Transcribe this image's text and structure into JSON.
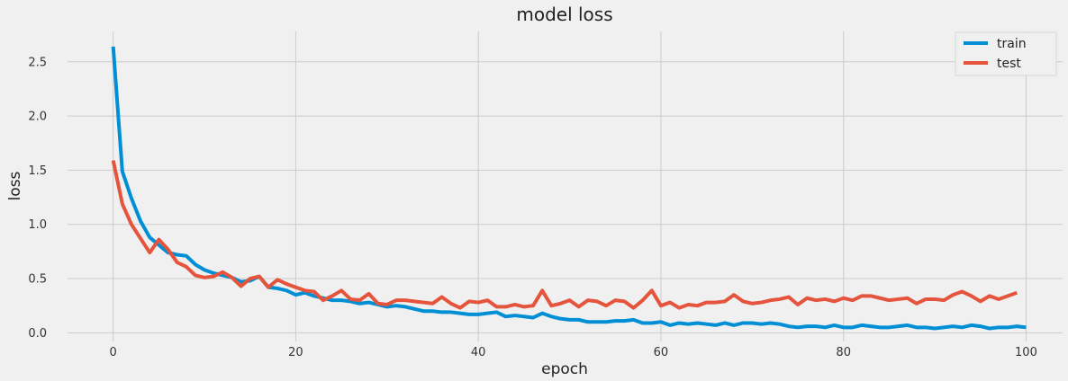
{
  "chart_data": {
    "type": "line",
    "title": "model loss",
    "xlabel": "epoch",
    "ylabel": "loss",
    "xlim": [
      -5,
      104
    ],
    "ylim": [
      -0.08,
      2.78
    ],
    "xticks": [
      0,
      20,
      40,
      60,
      80,
      100
    ],
    "xtick_labels": [
      "0",
      "20",
      "40",
      "60",
      "80",
      "100"
    ],
    "yticks": [
      0.0,
      0.5,
      1.0,
      1.5,
      2.0,
      2.5
    ],
    "ytick_labels": [
      "0.0",
      "0.5",
      "1.0",
      "1.5",
      "2.0",
      "2.5"
    ],
    "grid": true,
    "legend_position": "top-right",
    "series": [
      {
        "name": "train",
        "color": "#008fd5",
        "values": [
          2.64,
          1.49,
          1.24,
          1.03,
          0.88,
          0.81,
          0.74,
          0.72,
          0.71,
          0.63,
          0.58,
          0.55,
          0.53,
          0.51,
          0.47,
          0.48,
          0.52,
          0.42,
          0.41,
          0.39,
          0.35,
          0.37,
          0.34,
          0.32,
          0.3,
          0.3,
          0.29,
          0.27,
          0.28,
          0.26,
          0.24,
          0.25,
          0.24,
          0.22,
          0.2,
          0.2,
          0.19,
          0.19,
          0.18,
          0.17,
          0.17,
          0.18,
          0.19,
          0.15,
          0.16,
          0.15,
          0.14,
          0.18,
          0.15,
          0.13,
          0.12,
          0.12,
          0.1,
          0.1,
          0.1,
          0.11,
          0.11,
          0.12,
          0.09,
          0.09,
          0.1,
          0.07,
          0.09,
          0.08,
          0.09,
          0.08,
          0.07,
          0.09,
          0.07,
          0.09,
          0.09,
          0.08,
          0.09,
          0.08,
          0.06,
          0.05,
          0.06,
          0.06,
          0.05,
          0.07,
          0.05,
          0.05,
          0.07,
          0.06,
          0.05,
          0.05,
          0.06,
          0.07,
          0.05,
          0.05,
          0.04,
          0.05,
          0.06,
          0.05,
          0.07,
          0.06,
          0.04,
          0.05,
          0.05,
          0.06,
          0.05
        ]
      },
      {
        "name": "test",
        "color": "#e5543c",
        "values": [
          1.59,
          1.19,
          1.0,
          0.87,
          0.74,
          0.86,
          0.77,
          0.65,
          0.61,
          0.53,
          0.51,
          0.52,
          0.56,
          0.51,
          0.43,
          0.5,
          0.52,
          0.42,
          0.49,
          0.45,
          0.42,
          0.39,
          0.38,
          0.3,
          0.34,
          0.39,
          0.31,
          0.3,
          0.36,
          0.27,
          0.26,
          0.3,
          0.3,
          0.29,
          0.28,
          0.27,
          0.33,
          0.27,
          0.23,
          0.29,
          0.28,
          0.3,
          0.24,
          0.24,
          0.26,
          0.24,
          0.25,
          0.39,
          0.25,
          0.27,
          0.3,
          0.24,
          0.3,
          0.29,
          0.25,
          0.3,
          0.29,
          0.23,
          0.3,
          0.39,
          0.25,
          0.28,
          0.23,
          0.26,
          0.25,
          0.28,
          0.28,
          0.29,
          0.35,
          0.29,
          0.27,
          0.28,
          0.3,
          0.31,
          0.33,
          0.26,
          0.32,
          0.3,
          0.31,
          0.29,
          0.32,
          0.3,
          0.34,
          0.34,
          0.32,
          0.3,
          0.31,
          0.32,
          0.27,
          0.31,
          0.31,
          0.3,
          0.35,
          0.38,
          0.34,
          0.29,
          0.34,
          0.31,
          0.34,
          0.37
        ]
      }
    ]
  }
}
